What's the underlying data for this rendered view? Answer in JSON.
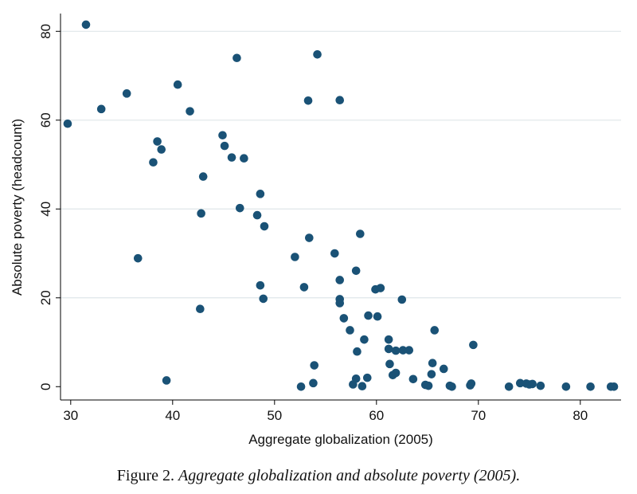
{
  "chart_data": {
    "type": "scatter",
    "title": "",
    "xlabel": "Aggregate globalization (2005)",
    "ylabel": "Absolute poverty (headcount)",
    "xlim": [
      29,
      84
    ],
    "ylim": [
      -3,
      84
    ],
    "xticks": [
      30,
      40,
      50,
      60,
      70,
      80
    ],
    "yticks": [
      0,
      20,
      40,
      60,
      80
    ],
    "grid": "horizontal",
    "marker_color": "#1a5276",
    "points": [
      {
        "x": 31.5,
        "y": 81.5
      },
      {
        "x": 29.7,
        "y": 59.2
      },
      {
        "x": 33.0,
        "y": 62.5
      },
      {
        "x": 35.5,
        "y": 66.0
      },
      {
        "x": 36.6,
        "y": 28.9
      },
      {
        "x": 38.1,
        "y": 50.5
      },
      {
        "x": 38.5,
        "y": 55.2
      },
      {
        "x": 38.9,
        "y": 53.4
      },
      {
        "x": 39.4,
        "y": 1.4
      },
      {
        "x": 40.5,
        "y": 68.0
      },
      {
        "x": 41.7,
        "y": 62.0
      },
      {
        "x": 42.7,
        "y": 17.5
      },
      {
        "x": 42.8,
        "y": 39.0
      },
      {
        "x": 43.0,
        "y": 47.3
      },
      {
        "x": 44.9,
        "y": 56.6
      },
      {
        "x": 45.1,
        "y": 54.2
      },
      {
        "x": 45.8,
        "y": 51.6
      },
      {
        "x": 46.3,
        "y": 74.0
      },
      {
        "x": 46.6,
        "y": 40.2
      },
      {
        "x": 47.0,
        "y": 51.4
      },
      {
        "x": 48.3,
        "y": 38.6
      },
      {
        "x": 48.6,
        "y": 43.4
      },
      {
        "x": 48.6,
        "y": 22.8
      },
      {
        "x": 48.9,
        "y": 19.8
      },
      {
        "x": 49.0,
        "y": 36.1
      },
      {
        "x": 52.0,
        "y": 29.2
      },
      {
        "x": 52.6,
        "y": 0.0
      },
      {
        "x": 52.9,
        "y": 22.4
      },
      {
        "x": 53.3,
        "y": 64.4
      },
      {
        "x": 53.4,
        "y": 33.5
      },
      {
        "x": 53.8,
        "y": 0.8
      },
      {
        "x": 53.9,
        "y": 4.8
      },
      {
        "x": 54.2,
        "y": 74.8
      },
      {
        "x": 55.9,
        "y": 30.0
      },
      {
        "x": 56.4,
        "y": 64.5
      },
      {
        "x": 56.4,
        "y": 24.0
      },
      {
        "x": 56.4,
        "y": 19.7
      },
      {
        "x": 56.4,
        "y": 18.8
      },
      {
        "x": 56.8,
        "y": 15.4
      },
      {
        "x": 57.4,
        "y": 12.7
      },
      {
        "x": 57.7,
        "y": 0.5
      },
      {
        "x": 58.0,
        "y": 1.8
      },
      {
        "x": 58.0,
        "y": 26.1
      },
      {
        "x": 58.1,
        "y": 7.9
      },
      {
        "x": 58.4,
        "y": 34.4
      },
      {
        "x": 58.6,
        "y": 0.1
      },
      {
        "x": 58.8,
        "y": 10.6
      },
      {
        "x": 59.1,
        "y": 2.0
      },
      {
        "x": 59.2,
        "y": 16.0
      },
      {
        "x": 59.9,
        "y": 21.9
      },
      {
        "x": 60.1,
        "y": 15.8
      },
      {
        "x": 60.4,
        "y": 22.2
      },
      {
        "x": 61.2,
        "y": 10.6
      },
      {
        "x": 61.2,
        "y": 8.5
      },
      {
        "x": 61.3,
        "y": 5.1
      },
      {
        "x": 61.6,
        "y": 2.6
      },
      {
        "x": 61.9,
        "y": 3.1
      },
      {
        "x": 61.9,
        "y": 8.1
      },
      {
        "x": 62.5,
        "y": 19.6
      },
      {
        "x": 62.6,
        "y": 8.2
      },
      {
        "x": 63.2,
        "y": 8.2
      },
      {
        "x": 63.6,
        "y": 1.7
      },
      {
        "x": 64.8,
        "y": 0.4
      },
      {
        "x": 65.1,
        "y": 0.2
      },
      {
        "x": 65.4,
        "y": 2.8
      },
      {
        "x": 65.5,
        "y": 5.3
      },
      {
        "x": 65.7,
        "y": 12.7
      },
      {
        "x": 66.6,
        "y": 4.0
      },
      {
        "x": 67.2,
        "y": 0.2
      },
      {
        "x": 67.4,
        "y": 0.0
      },
      {
        "x": 69.2,
        "y": 0.3
      },
      {
        "x": 69.3,
        "y": 0.7
      },
      {
        "x": 69.5,
        "y": 9.4
      },
      {
        "x": 73.0,
        "y": 0.0
      },
      {
        "x": 74.1,
        "y": 0.8
      },
      {
        "x": 74.7,
        "y": 0.7
      },
      {
        "x": 75.0,
        "y": 0.5
      },
      {
        "x": 75.3,
        "y": 0.6
      },
      {
        "x": 76.1,
        "y": 0.2
      },
      {
        "x": 78.6,
        "y": 0.0
      },
      {
        "x": 81.0,
        "y": 0.0
      },
      {
        "x": 83.0,
        "y": 0.0
      },
      {
        "x": 83.3,
        "y": 0.0
      }
    ]
  },
  "caption": {
    "label": "Figure 2.",
    "title": "Aggregate globalization and absolute poverty (2005)."
  }
}
